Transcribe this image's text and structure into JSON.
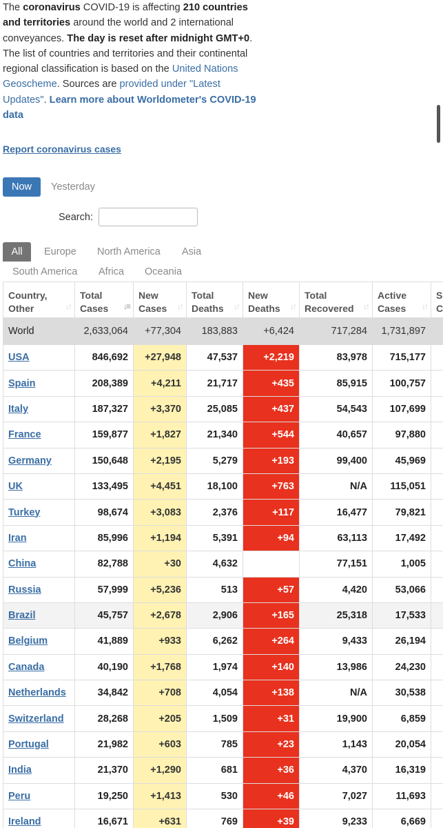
{
  "intro": {
    "p1": "The ",
    "b1": "coronavirus",
    "p2": " COVID-19 is affecting ",
    "b2": "210 countries and territories",
    "p3": " around the world and 2 international conveyances. ",
    "b3": "The day is reset after midnight GMT+0",
    "p4": ". The list of countries and territories and their continental regional classification is based on the ",
    "link1": "United Nations Geoscheme",
    "p5": ". Sources are ",
    "link2": "provided under \"Latest Updates\"",
    "p6": ". ",
    "link3": "Learn more about Worldometer's COVID-19 data"
  },
  "report_link": "Report coronavirus cases",
  "day_tabs": {
    "now": "Now",
    "yesterday": "Yesterday"
  },
  "search": {
    "label": "Search:",
    "value": ""
  },
  "region_tabs": [
    "All",
    "Europe",
    "North America",
    "Asia",
    "South America",
    "Africa",
    "Oceania"
  ],
  "table": {
    "headers": [
      {
        "l1": "Country,",
        "l2": "Other"
      },
      {
        "l1": "Total",
        "l2": "Cases"
      },
      {
        "l1": "New",
        "l2": "Cases"
      },
      {
        "l1": "Total",
        "l2": "Deaths"
      },
      {
        "l1": "New",
        "l2": "Deaths"
      },
      {
        "l1": "Total",
        "l2": "Recovered"
      },
      {
        "l1": "Active",
        "l2": "Cases"
      },
      {
        "l1": "S",
        "l2": "C"
      }
    ],
    "world": [
      "World",
      "2,633,064",
      "+77,304",
      "183,883",
      "+6,424",
      "717,284",
      "1,731,897"
    ],
    "rows": [
      [
        "USA",
        "846,692",
        "+27,948",
        "47,537",
        "+2,219",
        "83,978",
        "715,177"
      ],
      [
        "Spain",
        "208,389",
        "+4,211",
        "21,717",
        "+435",
        "85,915",
        "100,757"
      ],
      [
        "Italy",
        "187,327",
        "+3,370",
        "25,085",
        "+437",
        "54,543",
        "107,699"
      ],
      [
        "France",
        "159,877",
        "+1,827",
        "21,340",
        "+544",
        "40,657",
        "97,880"
      ],
      [
        "Germany",
        "150,648",
        "+2,195",
        "5,279",
        "+193",
        "99,400",
        "45,969"
      ],
      [
        "UK",
        "133,495",
        "+4,451",
        "18,100",
        "+763",
        "N/A",
        "115,051"
      ],
      [
        "Turkey",
        "98,674",
        "+3,083",
        "2,376",
        "+117",
        "16,477",
        "79,821"
      ],
      [
        "Iran",
        "85,996",
        "+1,194",
        "5,391",
        "+94",
        "63,113",
        "17,492"
      ],
      [
        "China",
        "82,788",
        "+30",
        "4,632",
        "",
        "77,151",
        "1,005"
      ],
      [
        "Russia",
        "57,999",
        "+5,236",
        "513",
        "+57",
        "4,420",
        "53,066"
      ],
      [
        "Brazil",
        "45,757",
        "+2,678",
        "2,906",
        "+165",
        "25,318",
        "17,533"
      ],
      [
        "Belgium",
        "41,889",
        "+933",
        "6,262",
        "+264",
        "9,433",
        "26,194"
      ],
      [
        "Canada",
        "40,190",
        "+1,768",
        "1,974",
        "+140",
        "13,986",
        "24,230"
      ],
      [
        "Netherlands",
        "34,842",
        "+708",
        "4,054",
        "+138",
        "N/A",
        "30,538"
      ],
      [
        "Switzerland",
        "28,268",
        "+205",
        "1,509",
        "+31",
        "19,900",
        "6,859"
      ],
      [
        "Portugal",
        "21,982",
        "+603",
        "785",
        "+23",
        "1,143",
        "20,054"
      ],
      [
        "India",
        "21,370",
        "+1,290",
        "681",
        "+36",
        "4,370",
        "16,319"
      ],
      [
        "Peru",
        "19,250",
        "+1,413",
        "530",
        "+46",
        "7,027",
        "11,693"
      ],
      [
        "Ireland",
        "16,671",
        "+631",
        "769",
        "+39",
        "9,233",
        "6,669"
      ]
    ]
  },
  "colors": {
    "accent_blue": "#3b77b5",
    "link_blue": "#3a6ea5",
    "new_cases_bg": "#fff2b3",
    "new_deaths_bg": "#e8311e",
    "world_row_bg": "#dcdcdc"
  }
}
